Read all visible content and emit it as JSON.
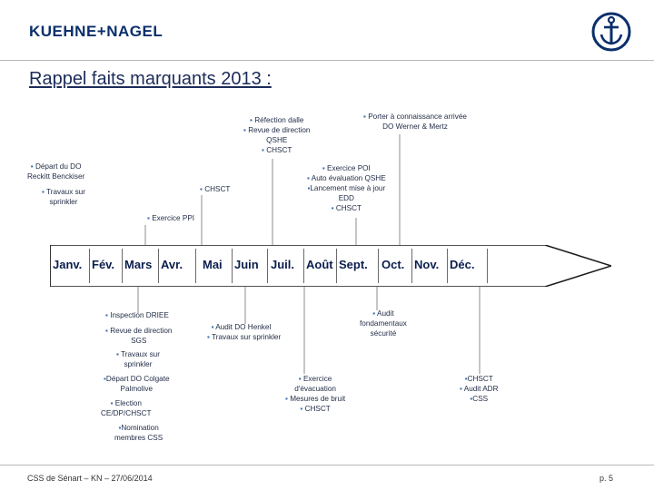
{
  "header": {
    "logo_text": "KUEHNE+NAGEL",
    "logo_icon": "anchor-icon",
    "accent_color": "#0a2f6b",
    "bullet_color": "#3b6fb0"
  },
  "title": "Rappel faits marquants 2013 :",
  "months": [
    "Janv.",
    "Fév.",
    "Mars",
    "Avr.",
    "Mai",
    "Juin",
    "Juil.",
    "Août",
    "Sept.",
    "Oct.",
    "Nov.",
    "Déc."
  ],
  "events_above": {
    "refection": [
      "Réfection dalle",
      "Revue de direction",
      "QSHE",
      "CHSCT"
    ],
    "porter": [
      "Porter à connaissance arrivée",
      "DO Werner & Mertz"
    ],
    "depart_reckitt": [
      "Départ du DO",
      "Reckitt Benckiser"
    ],
    "travaux_sprinkler": [
      "Travaux sur",
      "sprinkler"
    ],
    "chsct": "CHSCT",
    "exercice_poi": [
      "Exercice POI",
      "Auto évaluation QSHE",
      "Lancement mise à jour",
      "EDD",
      "CHSCT"
    ],
    "exercice_ppi": "Exercice PPI"
  },
  "events_below": {
    "inspection": "Inspection DRIEE",
    "revue_sgs": [
      "Revue de direction",
      "SGS"
    ],
    "travaux_sprinkler": [
      "Travaux sur",
      "sprinkler"
    ],
    "depart_colgate": [
      "Départ DO Colgate",
      "Palmolive"
    ],
    "election": [
      "Election",
      "CE/DP/CHSCT"
    ],
    "nomination": [
      "Nomination",
      "membres CSS"
    ],
    "audit_henkel": [
      "Audit DO Henkel",
      "Travaux sur sprinkler"
    ],
    "audit_fondamentaux": [
      "Audit",
      "fondamentaux",
      "sécurité"
    ],
    "exercice_evacuation": [
      "Exercice",
      "d'évacuation",
      "Mesures de bruit",
      "CHSCT"
    ],
    "chsct_audit_adr": [
      "CHSCT",
      "Audit ADR",
      "CSS"
    ]
  },
  "footer": {
    "left": "CSS de Sénart – KN – 27/06/2014",
    "page": "p. 5"
  }
}
